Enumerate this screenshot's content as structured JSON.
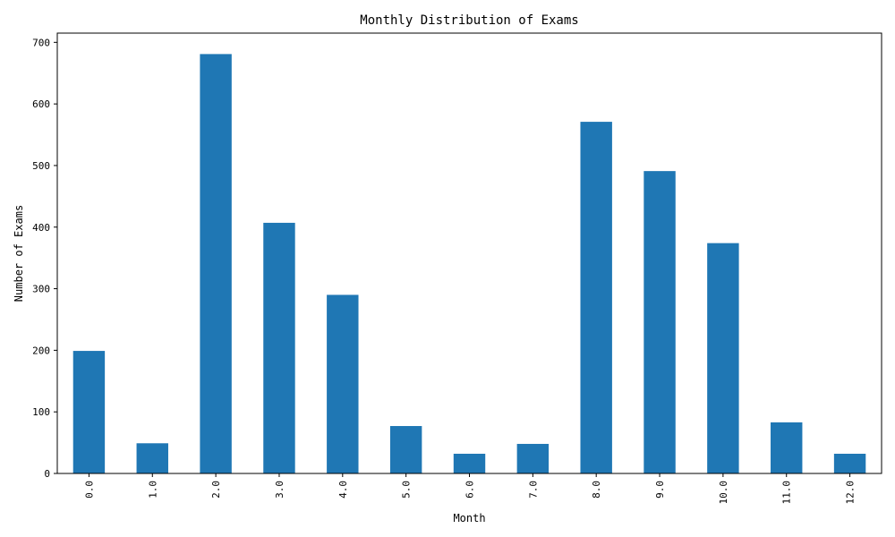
{
  "chart_data": {
    "type": "bar",
    "title": "Monthly Distribution of Exams",
    "xlabel": "Month",
    "ylabel": "Number of Exams",
    "categories": [
      "0.0",
      "1.0",
      "2.0",
      "3.0",
      "4.0",
      "5.0",
      "6.0",
      "7.0",
      "8.0",
      "9.0",
      "10.0",
      "11.0",
      "12.0"
    ],
    "values": [
      199,
      49,
      681,
      407,
      290,
      77,
      32,
      48,
      571,
      491,
      374,
      83,
      32
    ],
    "ylim": [
      0,
      715
    ],
    "yticks": [
      0,
      100,
      200,
      300,
      400,
      500,
      600,
      700
    ],
    "bar_color": "#1f77b4",
    "grid": false,
    "legend": "none"
  }
}
